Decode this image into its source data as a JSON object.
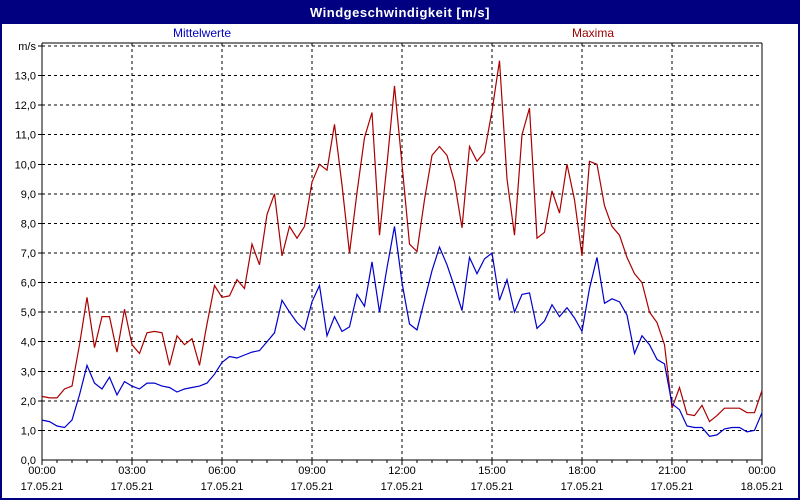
{
  "window": {
    "title": "Windgeschwindigkeit [m/s]"
  },
  "legend": {
    "mean": {
      "label": "Mittelwerte",
      "color": "#0000bb"
    },
    "max": {
      "label": "Maxima",
      "color": "#990000"
    }
  },
  "colors": {
    "titlebar_bg": "#000080",
    "titlebar_text": "#ffffff",
    "frame": "#000080",
    "grid": "#000000",
    "mean_line": "#0000cc",
    "max_line": "#aa0000",
    "background": "#ffffff"
  },
  "chart_data": {
    "type": "line",
    "title": "Windgeschwindigkeit [m/s]",
    "ylabel": "m/s",
    "ylim": [
      0,
      14.1
    ],
    "grid": true,
    "legend_position": "top",
    "x_span_hours": 24,
    "sample_interval_minutes": 15,
    "y_tick_labels": [
      "0,0",
      "1,0",
      "2,0",
      "3,0",
      "4,0",
      "5,0",
      "6,0",
      "7,0",
      "8,0",
      "9,0",
      "10,0",
      "11,0",
      "12,0",
      "13,0"
    ],
    "x_ticks": [
      {
        "hour": 0,
        "time": "00:00",
        "date": "17.05.21"
      },
      {
        "hour": 3,
        "time": "03:00",
        "date": "17.05.21"
      },
      {
        "hour": 6,
        "time": "06:00",
        "date": "17.05.21"
      },
      {
        "hour": 9,
        "time": "09:00",
        "date": "17.05.21"
      },
      {
        "hour": 12,
        "time": "12:00",
        "date": "17.05.21"
      },
      {
        "hour": 15,
        "time": "15:00",
        "date": "17.05.21"
      },
      {
        "hour": 18,
        "time": "18:00",
        "date": "17.05.21"
      },
      {
        "hour": 21,
        "time": "21:00",
        "date": "17.05.21"
      },
      {
        "hour": 24,
        "time": "00:00",
        "date": "18.05.21"
      }
    ],
    "series": [
      {
        "name": "Maxima",
        "color": "#aa0000",
        "values": [
          2.15,
          2.1,
          2.1,
          2.4,
          2.5,
          3.9,
          5.5,
          3.8,
          4.85,
          4.85,
          3.65,
          5.1,
          3.9,
          3.6,
          4.3,
          4.35,
          4.3,
          3.2,
          4.2,
          3.9,
          4.1,
          3.2,
          4.6,
          5.9,
          5.5,
          5.55,
          6.1,
          5.8,
          7.3,
          6.6,
          8.3,
          9.0,
          6.9,
          7.9,
          7.5,
          7.9,
          9.4,
          10.0,
          9.8,
          11.35,
          9.3,
          7.0,
          9.05,
          10.9,
          11.75,
          7.6,
          10.0,
          12.65,
          10.0,
          7.3,
          7.05,
          8.8,
          10.3,
          10.6,
          10.3,
          9.4,
          7.85,
          10.6,
          10.1,
          10.4,
          11.8,
          13.5,
          9.5,
          7.6,
          11.0,
          11.9,
          7.5,
          7.7,
          9.1,
          8.35,
          10.0,
          8.8,
          6.9,
          10.1,
          10.0,
          8.6,
          7.9,
          7.6,
          6.85,
          6.3,
          6.0,
          5.0,
          4.65,
          3.9,
          1.75,
          2.45,
          1.55,
          1.5,
          1.85,
          1.3,
          1.5,
          1.75,
          1.75,
          1.75,
          1.6,
          1.6,
          2.35
        ]
      },
      {
        "name": "Mittelwerte",
        "color": "#0000cc",
        "values": [
          1.35,
          1.3,
          1.15,
          1.1,
          1.35,
          2.2,
          3.2,
          2.6,
          2.4,
          2.8,
          2.2,
          2.65,
          2.5,
          2.4,
          2.6,
          2.6,
          2.5,
          2.45,
          2.3,
          2.4,
          2.45,
          2.5,
          2.6,
          2.9,
          3.3,
          3.5,
          3.45,
          3.55,
          3.65,
          3.7,
          4.0,
          4.3,
          5.4,
          5.0,
          4.65,
          4.4,
          5.35,
          5.9,
          4.2,
          4.85,
          4.35,
          4.5,
          5.6,
          5.2,
          6.7,
          5.0,
          6.5,
          7.9,
          6.0,
          4.6,
          4.4,
          5.4,
          6.4,
          7.2,
          6.6,
          5.85,
          5.05,
          6.85,
          6.3,
          6.8,
          7.0,
          5.4,
          6.1,
          5.0,
          5.6,
          5.65,
          4.45,
          4.7,
          5.25,
          4.85,
          5.15,
          4.8,
          4.35,
          5.8,
          6.85,
          5.3,
          5.45,
          5.35,
          4.9,
          3.6,
          4.2,
          3.9,
          3.4,
          3.25,
          1.9,
          1.7,
          1.15,
          1.1,
          1.1,
          0.8,
          0.85,
          1.05,
          1.1,
          1.1,
          0.95,
          1.0,
          1.6
        ]
      }
    ]
  }
}
